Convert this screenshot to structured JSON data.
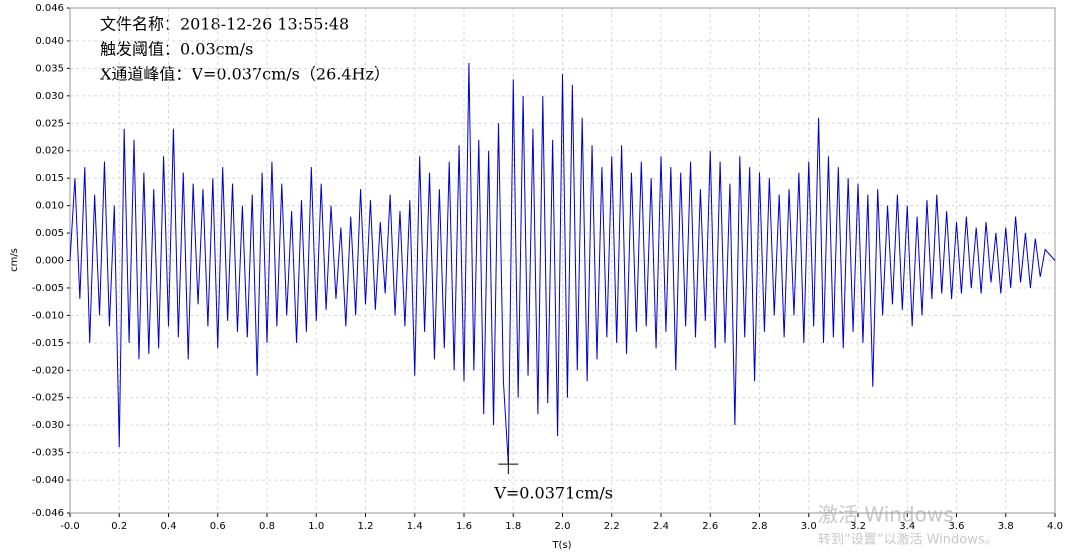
{
  "chart_data": {
    "type": "line",
    "annotations": [
      "文件名称：2018-12-26 13:55:48",
      "触发阈值：0.03cm/s",
      "X通道峰值：V=0.037cm/s（26.4Hz）"
    ],
    "ylabel": "cm/s",
    "xlabel": "T(s)",
    "peak": {
      "x": 1.78,
      "y": -0.0371,
      "label": "V=0.0371cm/s"
    },
    "watermark": [
      "激活 Windows",
      "转到“设置”以激活 Windows。"
    ],
    "xlim": [
      0,
      4.0
    ],
    "ylim": [
      -0.046,
      0.046
    ],
    "grid": true,
    "xticks": [
      {
        "value": 0,
        "label": "-0.0"
      },
      0.2,
      0.4,
      0.6,
      0.8,
      {
        "value": 1,
        "label": "1.0"
      },
      1.2,
      1.4,
      1.6,
      1.8,
      {
        "value": 2,
        "label": "2.0"
      },
      2.2,
      2.4,
      2.6,
      2.8,
      {
        "value": 3,
        "label": "3.0"
      },
      3.2,
      3.4,
      3.6,
      3.8,
      {
        "value": 4,
        "label": "4.0"
      }
    ],
    "yticks": [
      0.046,
      {
        "value": 0.04,
        "label": "0.040"
      },
      0.035,
      {
        "value": 0.03,
        "label": "0.030"
      },
      0.025,
      {
        "value": 0.02,
        "label": "0.020"
      },
      0.015,
      {
        "value": 0.01,
        "label": "0.010"
      },
      0.005,
      {
        "value": 0,
        "label": "0.000"
      },
      -0.005,
      {
        "value": -0.01,
        "label": "-0.010"
      },
      -0.015,
      {
        "value": -0.02,
        "label": "-0.020"
      },
      -0.025,
      {
        "value": -0.03,
        "label": "-0.030"
      },
      -0.035,
      {
        "value": -0.04,
        "label": "-0.040"
      },
      -0.046
    ],
    "x": [
      0,
      0.02,
      0.04,
      0.06,
      0.08,
      0.1,
      0.12,
      0.14,
      0.16,
      0.18,
      0.2,
      0.22,
      0.24,
      0.26,
      0.28,
      0.3,
      0.32,
      0.34,
      0.36,
      0.38,
      0.4,
      0.42,
      0.44,
      0.46,
      0.48,
      0.5,
      0.52,
      0.54,
      0.56,
      0.58,
      0.6,
      0.62,
      0.64,
      0.66,
      0.68,
      0.7,
      0.72,
      0.74,
      0.76,
      0.78,
      0.8,
      0.82,
      0.84,
      0.86,
      0.88,
      0.9,
      0.92,
      0.94,
      0.96,
      0.98,
      1.0,
      1.02,
      1.04,
      1.06,
      1.08,
      1.1,
      1.12,
      1.14,
      1.16,
      1.18,
      1.2,
      1.22,
      1.24,
      1.26,
      1.28,
      1.3,
      1.32,
      1.34,
      1.36,
      1.38,
      1.4,
      1.42,
      1.44,
      1.46,
      1.48,
      1.5,
      1.52,
      1.54,
      1.56,
      1.58,
      1.6,
      1.62,
      1.64,
      1.66,
      1.68,
      1.7,
      1.72,
      1.74,
      1.76,
      1.78,
      1.8,
      1.82,
      1.84,
      1.86,
      1.88,
      1.9,
      1.92,
      1.94,
      1.96,
      1.98,
      2.0,
      2.02,
      2.04,
      2.06,
      2.08,
      2.1,
      2.12,
      2.14,
      2.16,
      2.18,
      2.2,
      2.22,
      2.24,
      2.26,
      2.28,
      2.3,
      2.32,
      2.34,
      2.36,
      2.38,
      2.4,
      2.42,
      2.44,
      2.46,
      2.48,
      2.5,
      2.52,
      2.54,
      2.56,
      2.58,
      2.6,
      2.62,
      2.64,
      2.66,
      2.68,
      2.7,
      2.72,
      2.74,
      2.76,
      2.78,
      2.8,
      2.82,
      2.84,
      2.86,
      2.88,
      2.9,
      2.92,
      2.94,
      2.96,
      2.98,
      3.0,
      3.02,
      3.04,
      3.06,
      3.08,
      3.1,
      3.12,
      3.14,
      3.16,
      3.18,
      3.2,
      3.22,
      3.24,
      3.26,
      3.28,
      3.3,
      3.32,
      3.34,
      3.36,
      3.38,
      3.4,
      3.42,
      3.44,
      3.46,
      3.48,
      3.5,
      3.52,
      3.54,
      3.56,
      3.58,
      3.6,
      3.62,
      3.64,
      3.66,
      3.68,
      3.7,
      3.72,
      3.74,
      3.76,
      3.78,
      3.8,
      3.82,
      3.84,
      3.86,
      3.88,
      3.9,
      3.92,
      3.94,
      3.96,
      3.98,
      4.0
    ],
    "series": [
      {
        "color": "#0000cc",
        "values": [
          0.0,
          0.015,
          -0.007,
          0.017,
          -0.015,
          0.012,
          -0.01,
          0.018,
          -0.012,
          0.01,
          -0.034,
          0.024,
          -0.015,
          0.022,
          -0.018,
          0.016,
          -0.017,
          0.013,
          -0.016,
          0.019,
          -0.012,
          0.024,
          -0.014,
          0.016,
          -0.018,
          0.014,
          -0.008,
          0.013,
          -0.012,
          0.015,
          -0.016,
          0.017,
          -0.011,
          0.014,
          -0.013,
          0.01,
          -0.014,
          0.012,
          -0.021,
          0.016,
          -0.015,
          0.018,
          -0.012,
          0.014,
          -0.01,
          0.009,
          -0.015,
          0.011,
          -0.013,
          0.017,
          -0.011,
          0.014,
          -0.009,
          0.01,
          -0.007,
          0.006,
          -0.012,
          0.008,
          -0.01,
          0.013,
          -0.008,
          0.011,
          -0.009,
          0.007,
          -0.006,
          0.012,
          -0.01,
          0.009,
          -0.012,
          0.011,
          -0.021,
          0.019,
          -0.013,
          0.016,
          -0.018,
          0.013,
          -0.016,
          0.018,
          -0.02,
          0.021,
          -0.022,
          0.036,
          -0.02,
          0.022,
          -0.028,
          0.02,
          -0.03,
          0.025,
          -0.022,
          -0.0371,
          0.033,
          -0.025,
          0.03,
          -0.021,
          0.024,
          -0.028,
          0.03,
          -0.026,
          0.022,
          -0.032,
          0.034,
          -0.025,
          0.032,
          -0.02,
          0.026,
          -0.022,
          0.021,
          -0.018,
          0.017,
          -0.014,
          0.019,
          -0.015,
          0.021,
          -0.017,
          0.016,
          -0.013,
          0.018,
          -0.012,
          0.015,
          -0.016,
          0.019,
          -0.013,
          0.017,
          -0.02,
          0.016,
          -0.012,
          0.018,
          -0.014,
          0.013,
          -0.011,
          0.02,
          -0.016,
          0.018,
          -0.015,
          0.014,
          -0.03,
          0.019,
          -0.014,
          0.017,
          -0.022,
          0.016,
          -0.013,
          0.015,
          -0.01,
          0.012,
          -0.014,
          0.013,
          -0.01,
          0.016,
          -0.015,
          0.018,
          -0.012,
          0.026,
          -0.015,
          0.019,
          -0.014,
          0.017,
          -0.016,
          0.015,
          -0.013,
          0.014,
          -0.015,
          0.012,
          -0.023,
          0.013,
          -0.01,
          0.01,
          -0.008,
          0.012,
          -0.009,
          0.01,
          -0.012,
          0.008,
          -0.01,
          0.011,
          -0.007,
          0.012,
          -0.006,
          0.009,
          -0.007,
          0.007,
          -0.006,
          0.008,
          -0.005,
          0.006,
          -0.006,
          0.007,
          -0.004,
          0.005,
          -0.006,
          0.006,
          -0.005,
          0.008,
          -0.004,
          0.005,
          -0.005,
          0.004,
          -0.003,
          0.002,
          0.001,
          0.0
        ]
      }
    ]
  }
}
